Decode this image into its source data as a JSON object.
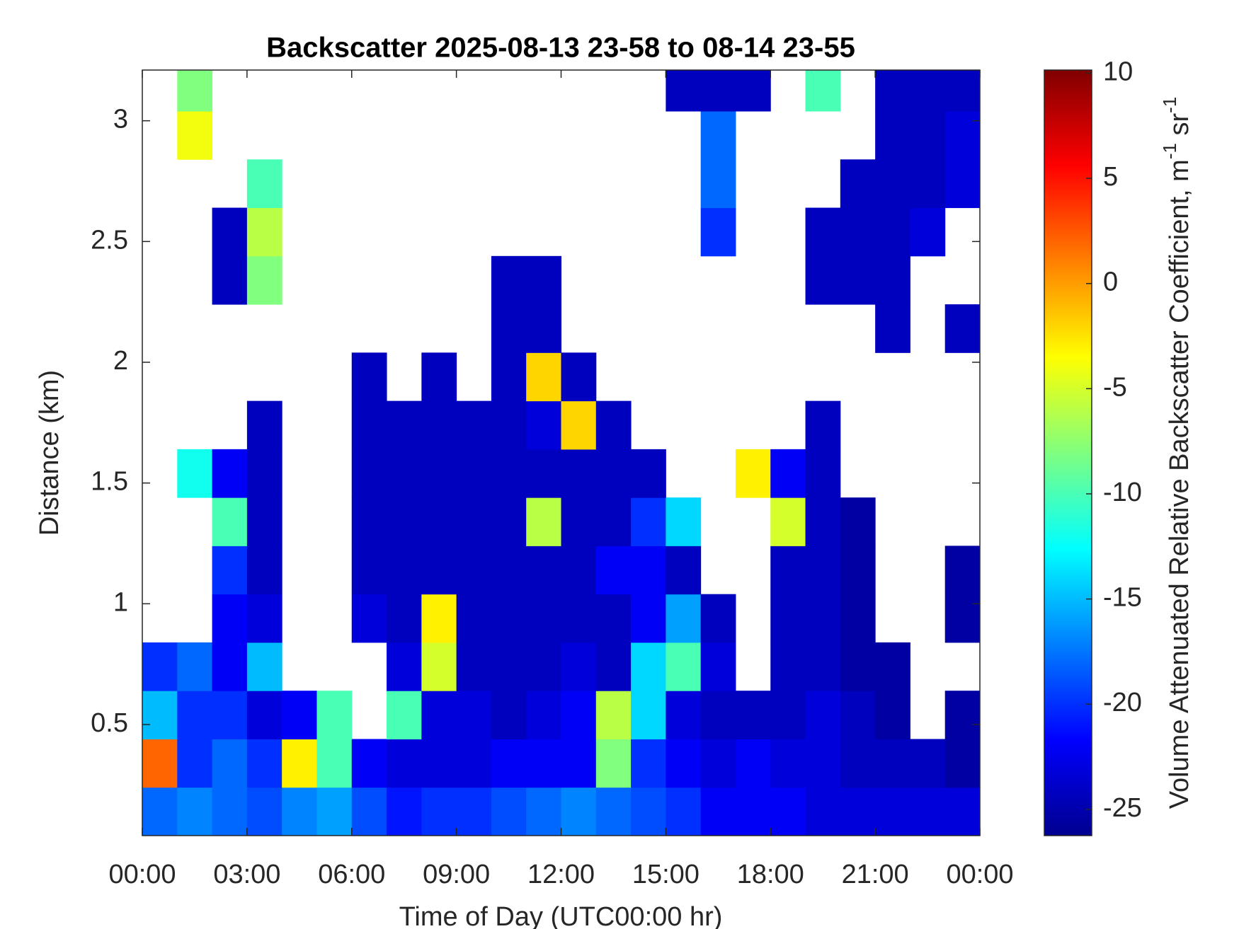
{
  "chart_data": {
    "type": "heatmap",
    "title": "Backscatter 2025-08-13 23-58 to 08-14 23-55",
    "x_label": "Time of Day (UTC00:00 hr)",
    "y_label": "Distance (km)",
    "colorbar_label_parts": [
      "Volume Attenuated Relative Backscatter Coefficient, m",
      "-1",
      " sr",
      "-1"
    ],
    "colormap": "jet",
    "xlim": [
      0,
      24
    ],
    "xticks": [
      {
        "value": 0,
        "label": "00:00"
      },
      {
        "value": 3,
        "label": "03:00"
      },
      {
        "value": 6,
        "label": "06:00"
      },
      {
        "value": 9,
        "label": "09:00"
      },
      {
        "value": 12,
        "label": "12:00"
      },
      {
        "value": 15,
        "label": "15:00"
      },
      {
        "value": 18,
        "label": "18:00"
      },
      {
        "value": 21,
        "label": "21:00"
      },
      {
        "value": 24,
        "label": "00:00"
      }
    ],
    "ylim": [
      0.04,
      3.21
    ],
    "yticks": [
      0.5,
      1,
      1.5,
      2,
      2.5,
      3
    ],
    "clim": [
      -26.25,
      10.15
    ],
    "cticks": [
      -25,
      -20,
      -15,
      -10,
      -5,
      0,
      5,
      10
    ],
    "x": [
      0.5,
      1.5,
      2.5,
      3.5,
      4.5,
      5.5,
      6.5,
      7.5,
      8.5,
      9.5,
      10.5,
      11.5,
      12.5,
      13.5,
      14.5,
      15.5,
      16.5,
      17.5,
      18.5,
      19.5,
      20.5,
      21.5,
      22.5,
      23.5
    ],
    "y": [
      0.14,
      0.34,
      0.54,
      0.74,
      0.94,
      1.14,
      1.34,
      1.54,
      1.74,
      1.94,
      2.14,
      2.34,
      2.54,
      2.74,
      2.94,
      3.14
    ],
    "z": [
      [
        -18,
        -17,
        -18,
        -19,
        -17,
        -16,
        -19,
        -21,
        -20,
        -20,
        -19,
        -18,
        -17,
        -18,
        -19,
        -20,
        -22,
        -22,
        -22,
        -23,
        -23,
        -23,
        -23,
        -23
      ],
      [
        2,
        -20,
        -18,
        -20,
        -3,
        -10,
        -22,
        -23,
        -23,
        -23,
        -22,
        -22,
        -22,
        -8,
        -20,
        -22,
        -23,
        -22,
        -23,
        -23,
        -24,
        -24,
        -24,
        -25
      ],
      [
        -15,
        -20,
        -20,
        -23,
        -22,
        -10,
        null,
        -10,
        -23,
        -23,
        -24,
        -23,
        -22,
        -6,
        -14,
        -23,
        -24,
        -24,
        -24,
        -23,
        -24,
        -25,
        null,
        -25
      ],
      [
        -20,
        -18,
        -22,
        -15,
        null,
        null,
        null,
        -23,
        -5,
        -24,
        -24,
        -24,
        -23,
        -24,
        -14,
        -10,
        -23,
        null,
        -24,
        -24,
        -25,
        -25,
        null,
        null
      ],
      [
        null,
        null,
        -22,
        -23,
        null,
        null,
        -23,
        -24,
        -3,
        -24,
        -24,
        -24,
        -24,
        -24,
        -22,
        -16,
        -24,
        null,
        -24,
        -24,
        -25,
        null,
        null,
        -25
      ],
      [
        null,
        null,
        -20,
        -24,
        null,
        null,
        -24,
        -24,
        -24,
        -24,
        -24,
        -24,
        -24,
        -22,
        -22,
        -24,
        null,
        null,
        -24,
        -24,
        -25,
        null,
        null,
        -25
      ],
      [
        null,
        null,
        -10,
        -24,
        null,
        null,
        -24,
        -24,
        -24,
        -24,
        -24,
        -6,
        -24,
        -24,
        -20,
        -14,
        null,
        null,
        -5,
        -24,
        -25,
        null,
        null,
        null
      ],
      [
        null,
        -12,
        -22,
        -24,
        null,
        null,
        -24,
        -24,
        -24,
        -24,
        -24,
        -24,
        -24,
        -24,
        -24,
        null,
        null,
        -3,
        -22,
        -24,
        null,
        null,
        null,
        null
      ],
      [
        null,
        null,
        null,
        -24,
        null,
        null,
        -24,
        -24,
        -24,
        -24,
        -24,
        -23,
        -2,
        -24,
        null,
        null,
        null,
        null,
        null,
        -24,
        null,
        null,
        null,
        null
      ],
      [
        null,
        null,
        null,
        null,
        null,
        null,
        -24,
        null,
        -24,
        null,
        -24,
        -2,
        -24,
        null,
        null,
        null,
        null,
        null,
        null,
        null,
        null,
        null,
        null,
        null
      ],
      [
        null,
        null,
        null,
        null,
        null,
        null,
        null,
        null,
        null,
        null,
        -24,
        -24,
        null,
        null,
        null,
        null,
        null,
        null,
        null,
        null,
        null,
        -24,
        null,
        -24
      ],
      [
        null,
        null,
        -24,
        -8,
        null,
        null,
        null,
        null,
        null,
        null,
        -24,
        -24,
        null,
        null,
        null,
        null,
        null,
        null,
        null,
        -24,
        -24,
        -24,
        null,
        null
      ],
      [
        null,
        null,
        -24,
        -6,
        null,
        null,
        null,
        null,
        null,
        null,
        null,
        null,
        null,
        null,
        null,
        null,
        -20,
        null,
        null,
        -24,
        -24,
        -24,
        -23,
        null
      ],
      [
        null,
        null,
        null,
        -10,
        null,
        null,
        null,
        null,
        null,
        null,
        null,
        null,
        null,
        null,
        null,
        null,
        -18,
        null,
        null,
        null,
        -24,
        -24,
        -24,
        -23
      ],
      [
        null,
        -4,
        null,
        null,
        null,
        null,
        null,
        null,
        null,
        null,
        null,
        null,
        null,
        null,
        null,
        null,
        -18,
        null,
        null,
        null,
        null,
        -24,
        -24,
        -23
      ],
      [
        null,
        -8,
        null,
        null,
        null,
        null,
        null,
        null,
        null,
        null,
        null,
        null,
        null,
        null,
        null,
        -24,
        -24,
        -24,
        null,
        -10,
        null,
        -24,
        -24,
        -24
      ]
    ]
  }
}
